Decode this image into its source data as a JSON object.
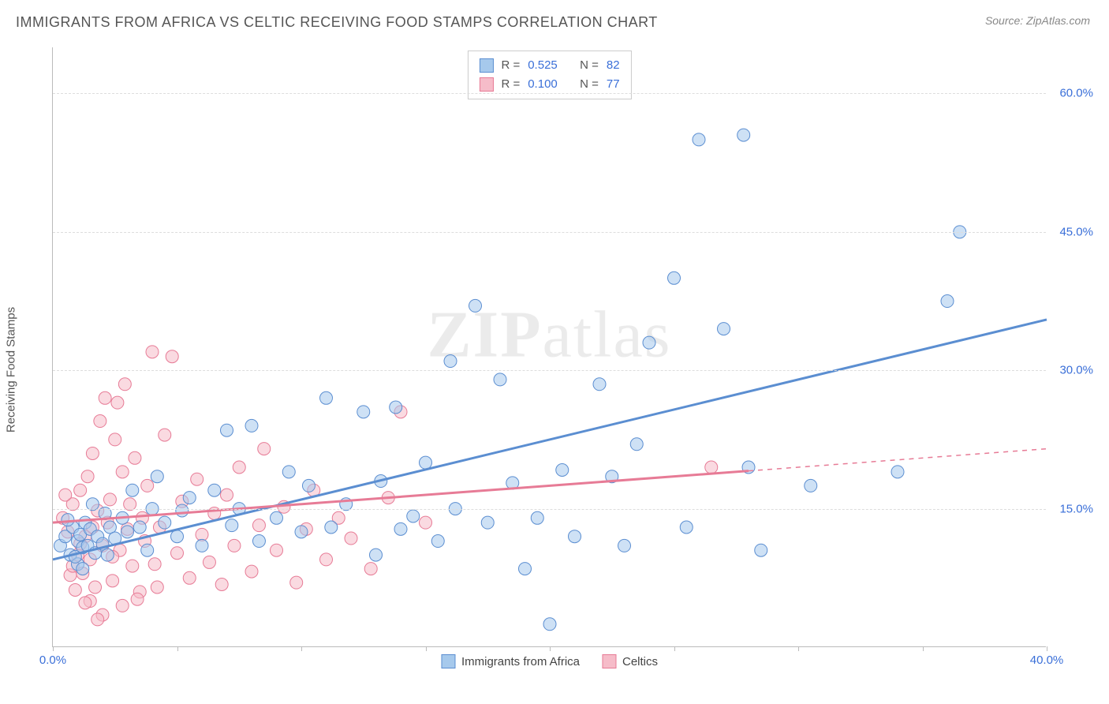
{
  "header": {
    "title": "IMMIGRANTS FROM AFRICA VS CELTIC RECEIVING FOOD STAMPS CORRELATION CHART",
    "source_prefix": "Source: ",
    "source_name": "ZipAtlas.com"
  },
  "chart": {
    "type": "scatter",
    "ylabel": "Receiving Food Stamps",
    "watermark": "ZIPatlas",
    "background_color": "#ffffff",
    "grid_color": "#dddddd",
    "axis_color": "#bbbbbb",
    "tick_label_color": "#3a6fd8",
    "xlim": [
      0,
      40
    ],
    "ylim": [
      0,
      65
    ],
    "x_ticks": [
      0,
      5,
      10,
      15,
      20,
      25,
      30,
      35,
      40
    ],
    "x_tick_labels": {
      "0": "0.0%",
      "40": "40.0%"
    },
    "y_gridlines": [
      15,
      30,
      45,
      60
    ],
    "y_tick_labels": {
      "15": "15.0%",
      "30": "30.0%",
      "45": "45.0%",
      "60": "60.0%"
    },
    "marker_radius": 8,
    "marker_opacity": 0.55,
    "line_width": 3,
    "series": [
      {
        "id": "africa",
        "label": "Immigrants from Africa",
        "color_fill": "#a6c9ec",
        "color_stroke": "#5b8ed1",
        "r_value": "0.525",
        "n_value": "82",
        "regression": {
          "x1": 0,
          "y1": 9.5,
          "x2": 40,
          "y2": 35.5,
          "solid_to_x": 40
        },
        "points": [
          [
            0.3,
            11
          ],
          [
            0.5,
            12
          ],
          [
            0.7,
            10
          ],
          [
            0.8,
            13
          ],
          [
            1.0,
            11.5
          ],
          [
            1.1,
            12.2
          ],
          [
            1.2,
            10.8
          ],
          [
            1.3,
            13.5
          ],
          [
            1.4,
            11
          ],
          [
            1.5,
            12.8
          ],
          [
            1.6,
            15.5
          ],
          [
            1.7,
            10.2
          ],
          [
            1.8,
            12
          ],
          [
            2.0,
            11.2
          ],
          [
            2.1,
            14.5
          ],
          [
            2.3,
            13
          ],
          [
            2.5,
            11.8
          ],
          [
            2.8,
            14
          ],
          [
            3.0,
            12.5
          ],
          [
            3.2,
            17
          ],
          [
            3.5,
            13
          ],
          [
            4.0,
            15
          ],
          [
            4.2,
            18.5
          ],
          [
            4.5,
            13.5
          ],
          [
            5.0,
            12
          ],
          [
            5.2,
            14.8
          ],
          [
            5.5,
            16.2
          ],
          [
            6.0,
            11
          ],
          [
            6.5,
            17
          ],
          [
            7.0,
            23.5
          ],
          [
            7.2,
            13.2
          ],
          [
            7.5,
            15
          ],
          [
            8.0,
            24
          ],
          [
            8.3,
            11.5
          ],
          [
            9.0,
            14
          ],
          [
            9.5,
            19
          ],
          [
            10.0,
            12.5
          ],
          [
            10.3,
            17.5
          ],
          [
            11.0,
            27
          ],
          [
            11.2,
            13
          ],
          [
            11.8,
            15.5
          ],
          [
            12.5,
            25.5
          ],
          [
            13.0,
            10
          ],
          [
            13.2,
            18
          ],
          [
            13.8,
            26
          ],
          [
            14.0,
            12.8
          ],
          [
            14.5,
            14.2
          ],
          [
            15.0,
            20
          ],
          [
            15.5,
            11.5
          ],
          [
            16.0,
            31
          ],
          [
            16.2,
            15
          ],
          [
            17.0,
            37
          ],
          [
            17.5,
            13.5
          ],
          [
            18.0,
            29
          ],
          [
            18.5,
            17.8
          ],
          [
            19.0,
            8.5
          ],
          [
            19.5,
            14
          ],
          [
            20.0,
            2.5
          ],
          [
            20.5,
            19.2
          ],
          [
            21.0,
            12
          ],
          [
            22.0,
            28.5
          ],
          [
            22.5,
            18.5
          ],
          [
            23.0,
            11
          ],
          [
            23.5,
            22
          ],
          [
            24.0,
            33
          ],
          [
            25.0,
            40
          ],
          [
            25.5,
            13
          ],
          [
            26.0,
            55
          ],
          [
            27.0,
            34.5
          ],
          [
            27.8,
            55.5
          ],
          [
            28.0,
            19.5
          ],
          [
            28.5,
            10.5
          ],
          [
            30.5,
            17.5
          ],
          [
            34.0,
            19
          ],
          [
            36.0,
            37.5
          ],
          [
            36.5,
            45
          ],
          [
            1.0,
            9
          ],
          [
            1.2,
            8.5
          ],
          [
            0.6,
            13.8
          ],
          [
            0.9,
            9.8
          ],
          [
            2.2,
            10
          ],
          [
            3.8,
            10.5
          ]
        ]
      },
      {
        "id": "celtics",
        "label": "Celtics",
        "color_fill": "#f6bcc9",
        "color_stroke": "#e77b96",
        "r_value": "0.100",
        "n_value": "77",
        "regression": {
          "x1": 0,
          "y1": 13.5,
          "x2": 40,
          "y2": 21.5,
          "solid_to_x": 28
        },
        "points": [
          [
            0.4,
            14
          ],
          [
            0.6,
            12.5
          ],
          [
            0.8,
            15.5
          ],
          [
            1.0,
            10
          ],
          [
            1.1,
            17
          ],
          [
            1.2,
            8
          ],
          [
            1.3,
            12
          ],
          [
            1.4,
            18.5
          ],
          [
            1.5,
            9.5
          ],
          [
            1.6,
            21
          ],
          [
            1.7,
            6.5
          ],
          [
            1.8,
            14.8
          ],
          [
            1.9,
            24.5
          ],
          [
            2.0,
            11
          ],
          [
            2.1,
            27
          ],
          [
            2.2,
            13.5
          ],
          [
            2.3,
            16
          ],
          [
            2.4,
            7.2
          ],
          [
            2.5,
            22.5
          ],
          [
            2.6,
            26.5
          ],
          [
            2.7,
            10.5
          ],
          [
            2.8,
            19
          ],
          [
            2.9,
            28.5
          ],
          [
            3.0,
            12.8
          ],
          [
            3.1,
            15.5
          ],
          [
            3.2,
            8.8
          ],
          [
            3.3,
            20.5
          ],
          [
            3.5,
            6
          ],
          [
            3.6,
            14
          ],
          [
            3.7,
            11.5
          ],
          [
            3.8,
            17.5
          ],
          [
            4.0,
            32
          ],
          [
            4.1,
            9
          ],
          [
            4.3,
            13
          ],
          [
            4.5,
            23
          ],
          [
            4.8,
            31.5
          ],
          [
            5.0,
            10.2
          ],
          [
            5.2,
            15.8
          ],
          [
            5.5,
            7.5
          ],
          [
            5.8,
            18.2
          ],
          [
            6.0,
            12.2
          ],
          [
            6.3,
            9.2
          ],
          [
            6.5,
            14.5
          ],
          [
            6.8,
            6.8
          ],
          [
            7.0,
            16.5
          ],
          [
            7.3,
            11
          ],
          [
            7.5,
            19.5
          ],
          [
            8.0,
            8.2
          ],
          [
            8.3,
            13.2
          ],
          [
            8.5,
            21.5
          ],
          [
            9.0,
            10.5
          ],
          [
            9.3,
            15.2
          ],
          [
            9.8,
            7
          ],
          [
            10.2,
            12.8
          ],
          [
            10.5,
            17
          ],
          [
            11.0,
            9.5
          ],
          [
            11.5,
            14
          ],
          [
            12.0,
            11.8
          ],
          [
            12.8,
            8.5
          ],
          [
            13.5,
            16.2
          ],
          [
            14.0,
            25.5
          ],
          [
            15.0,
            13.5
          ],
          [
            2.0,
            3.5
          ],
          [
            2.8,
            4.5
          ],
          [
            1.5,
            5
          ],
          [
            0.9,
            6.2
          ],
          [
            1.3,
            4.8
          ],
          [
            0.7,
            7.8
          ],
          [
            1.8,
            3
          ],
          [
            3.4,
            5.2
          ],
          [
            4.2,
            6.5
          ],
          [
            26.5,
            19.5
          ],
          [
            0.5,
            16.5
          ],
          [
            1.6,
            13
          ],
          [
            2.4,
            9.8
          ],
          [
            1.1,
            11.2
          ],
          [
            0.8,
            8.8
          ]
        ]
      }
    ],
    "legend_top": {
      "r_label": "R =",
      "n_label": "N ="
    }
  }
}
